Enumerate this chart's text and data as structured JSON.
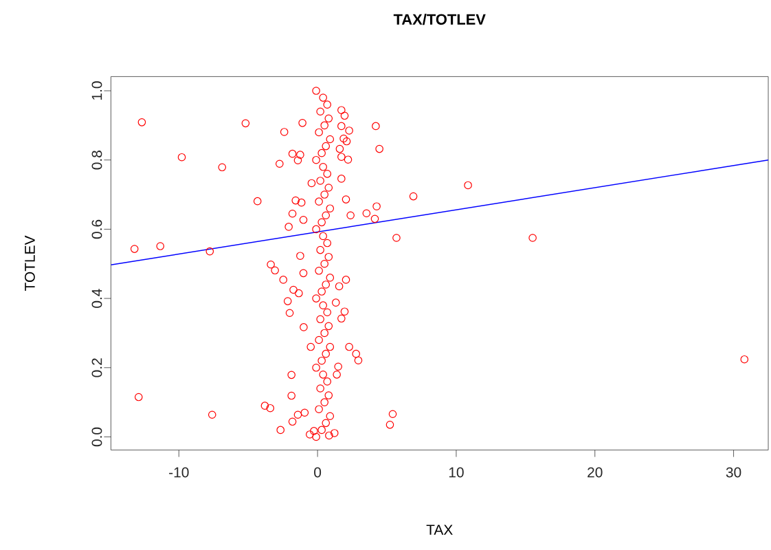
{
  "chart_data": {
    "type": "scatter",
    "title": "TAX/TOTLEV",
    "xlabel": "TAX",
    "ylabel": "TOTLEV",
    "xlim": [
      -14.9,
      32.5
    ],
    "ylim": [
      -0.038,
      1.041
    ],
    "xticks": [
      -10,
      0,
      10,
      20,
      30
    ],
    "yticks": [
      {
        "value": 0,
        "label": "0.0"
      },
      {
        "value": 0.2,
        "label": "0.2"
      },
      {
        "value": 0.4,
        "label": "0.4"
      },
      {
        "value": 0.6,
        "label": "0.6"
      },
      {
        "value": 0.8,
        "label": "0.8"
      },
      {
        "value": 1,
        "label": "1.0"
      }
    ],
    "grid": false,
    "marker": "circle",
    "series": [
      {
        "color": "#ff0000",
        "x": [
          -12.67,
          -13.2,
          -11.34,
          -12.9,
          -9.79,
          -6.88,
          -7.6,
          -7.77,
          -5.19,
          -4.33,
          -3.8,
          -3.37,
          -3.07,
          -2.4,
          -2.74,
          -2.67,
          -3.41,
          -2.08,
          -1.81,
          -1.88,
          -1.88,
          -1.81,
          -2.01,
          -1.0,
          -1.09,
          -0.43,
          -2.47,
          -2.15,
          -1.74,
          -1.35,
          -1.25,
          -1.02,
          -1.81,
          -1.25,
          -1.42,
          -1.58,
          -1.16,
          -1.02,
          -0.49,
          -0.93,
          -1.42,
          -0.26,
          -0.56,
          1.72,
          1.95,
          1.72,
          2.28,
          1.88,
          2.1,
          1.6,
          1.72,
          2.2,
          1.72,
          2.05,
          2.38,
          2.05,
          1.56,
          1.95,
          1.72,
          1.32,
          2.28,
          2.78,
          2.94,
          1.49,
          1.39,
          1.22,
          0.83,
          4.2,
          4.46,
          4.26,
          3.53,
          4.13,
          6.91,
          10.85,
          5.69,
          15.51,
          30.78,
          5.42,
          5.22,
          -0.1,
          0.3,
          0.6,
          0.9,
          0.1,
          0.5,
          0.8,
          0.2,
          0.7,
          0.4,
          -0.1,
          0.3,
          0.6,
          0.9,
          0.1,
          0.5,
          0.8,
          0.2,
          0.7,
          0.4,
          -0.1,
          0.3,
          0.6,
          0.9,
          0.1,
          0.5,
          0.8,
          0.2,
          0.7,
          0.4,
          -0.1,
          0.3,
          0.6,
          0.9,
          0.1,
          0.5,
          0.8,
          0.2,
          0.7,
          0.4,
          -0.1,
          0.3,
          0.6,
          0.9,
          0.1,
          0.5,
          0.8,
          0.2,
          0.7,
          0.4,
          -0.1
        ],
        "values": [
          0.909,
          0.543,
          0.551,
          0.115,
          0.808,
          0.779,
          0.064,
          0.536,
          0.906,
          0.681,
          0.09,
          0.498,
          0.481,
          0.881,
          0.789,
          0.02,
          0.083,
          0.607,
          0.645,
          0.179,
          0.119,
          0.044,
          0.358,
          0.317,
          0.907,
          0.733,
          0.454,
          0.392,
          0.425,
          0.415,
          0.523,
          0.473,
          0.818,
          0.815,
          0.799,
          0.683,
          0.677,
          0.627,
          0.26,
          0.07,
          0.064,
          0.017,
          0.007,
          0.944,
          0.928,
          0.898,
          0.885,
          0.862,
          0.854,
          0.832,
          0.809,
          0.801,
          0.746,
          0.686,
          0.64,
          0.454,
          0.435,
          0.362,
          0.342,
          0.388,
          0.26,
          0.24,
          0.221,
          0.203,
          0.18,
          0.011,
          0.004,
          0.898,
          0.832,
          0.666,
          0.646,
          0.63,
          0.695,
          0.727,
          0.575,
          0.575,
          0.224,
          0.066,
          0.035,
          0.0,
          0.02,
          0.04,
          0.06,
          0.08,
          0.1,
          0.12,
          0.14,
          0.16,
          0.18,
          0.2,
          0.22,
          0.24,
          0.26,
          0.28,
          0.3,
          0.32,
          0.34,
          0.36,
          0.38,
          0.4,
          0.42,
          0.44,
          0.46,
          0.48,
          0.5,
          0.52,
          0.54,
          0.56,
          0.58,
          0.6,
          0.62,
          0.64,
          0.66,
          0.68,
          0.7,
          0.72,
          0.74,
          0.76,
          0.78,
          0.8,
          0.82,
          0.84,
          0.86,
          0.88,
          0.9,
          0.92,
          0.94,
          0.96,
          0.98,
          1.0
        ]
      },
      {
        "type": "line",
        "color": "#0000ff",
        "marker": "none",
        "line_style": "solid",
        "x": [
          -14.9,
          32.5
        ],
        "values": [
          0.497,
          0.8
        ]
      }
    ]
  }
}
